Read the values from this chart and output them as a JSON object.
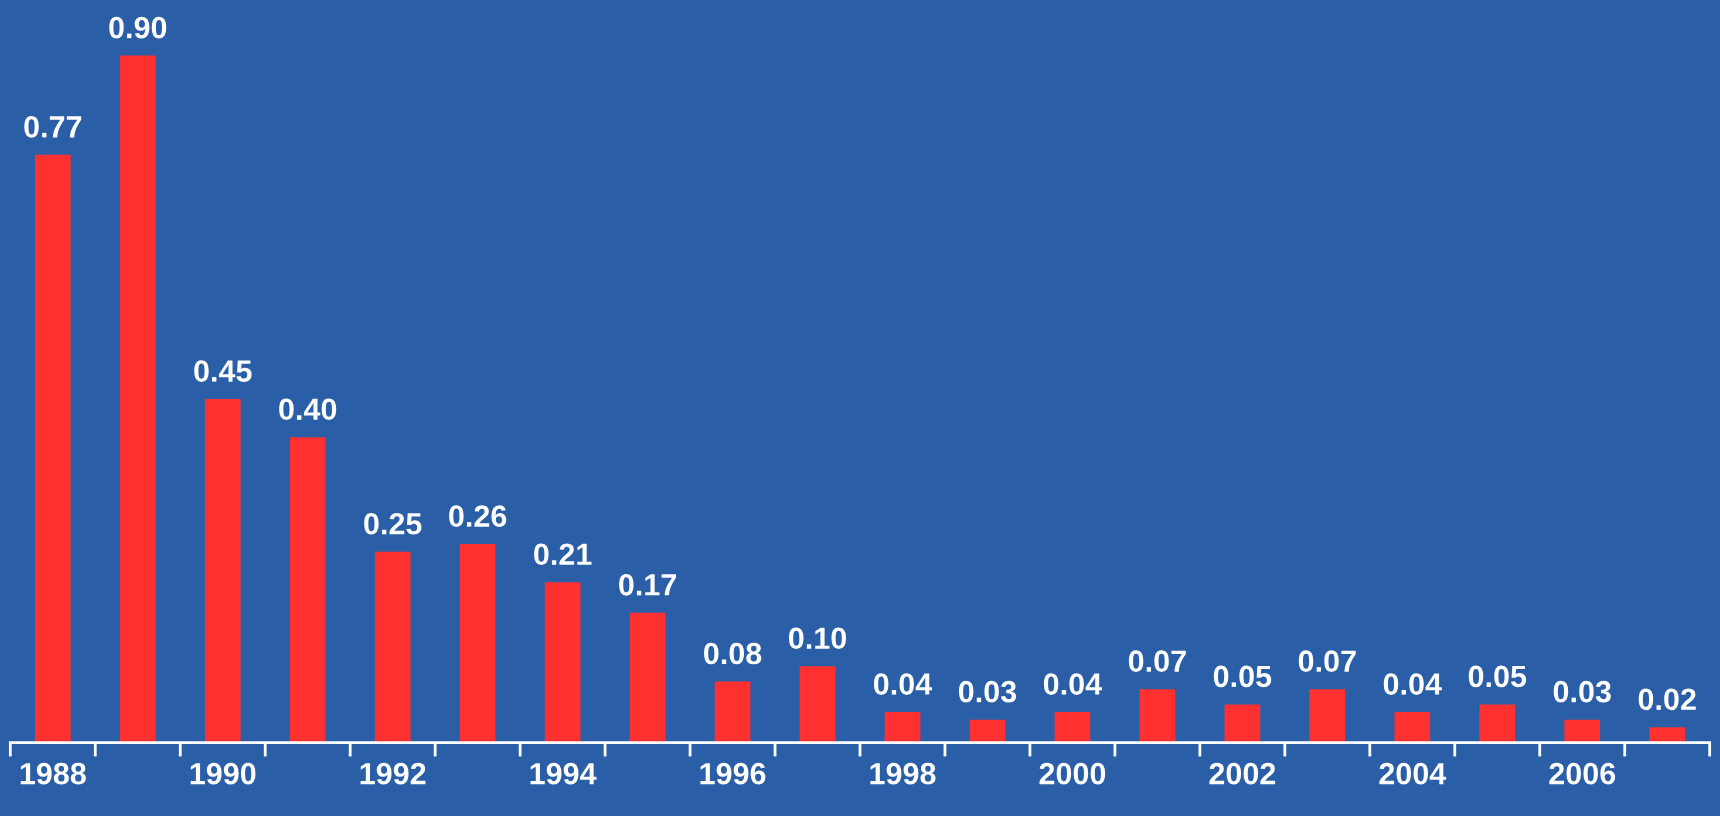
{
  "chart_data": {
    "type": "bar",
    "categories": [
      "1988",
      null,
      "1990",
      null,
      "1992",
      null,
      "1994",
      null,
      "1996",
      null,
      "1998",
      null,
      "2000",
      null,
      "2002",
      null,
      "2004",
      null,
      "2006",
      null
    ],
    "values": [
      0.77,
      0.9,
      0.45,
      0.4,
      0.25,
      0.26,
      0.21,
      0.17,
      0.08,
      0.1,
      0.04,
      0.03,
      0.04,
      0.07,
      0.05,
      0.07,
      0.04,
      0.05,
      0.03,
      0.02
    ],
    "color": "#ff3030",
    "value_labels": [
      "0.77",
      "0.90",
      "0.45",
      "0.40",
      "0.25",
      "0.26",
      "0.21",
      "0.17",
      "0.08",
      "0.10",
      "0.04",
      "0.03",
      "0.04",
      "0.07",
      "0.05",
      "0.07",
      "0.04",
      "0.05",
      "0.03",
      "0.02"
    ],
    "tick_labels": "x",
    "grid": false,
    "legend": false
  }
}
